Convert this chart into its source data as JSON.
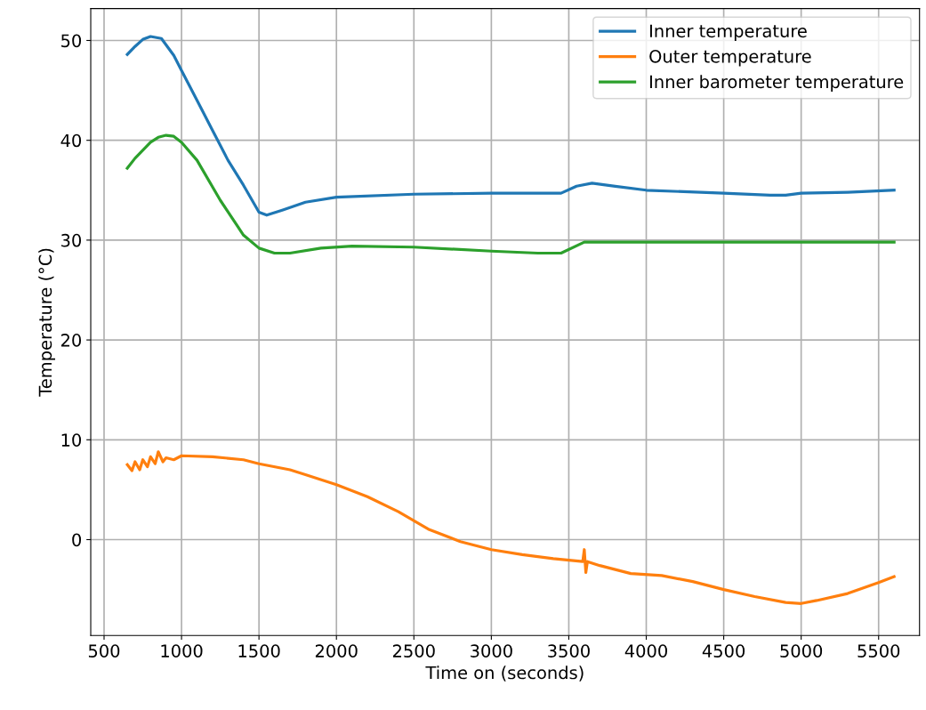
{
  "chart_data": {
    "type": "line",
    "xlabel": "Time on (seconds)",
    "ylabel": "Temperature (°C)",
    "xlim": [
      414,
      5764
    ],
    "ylim": [
      -9.6,
      53.2
    ],
    "xticks": [
      500,
      1000,
      1500,
      2000,
      2500,
      3000,
      3500,
      4000,
      4500,
      5000,
      5500
    ],
    "yticks": [
      0,
      10,
      20,
      30,
      40,
      50
    ],
    "grid": true,
    "legend": "top right",
    "marker": "none",
    "line_style": "solid",
    "series": [
      {
        "name": "Inner temperature",
        "color": "#1f77b4",
        "x": [
          650,
          700,
          750,
          800,
          870,
          950,
          1000,
          1100,
          1200,
          1300,
          1400,
          1500,
          1550,
          1650,
          1800,
          2000,
          2500,
          3000,
          3450,
          3550,
          3650,
          3800,
          4000,
          4500,
          4800,
          4900,
          5000,
          5300,
          5600
        ],
        "values": [
          48.6,
          49.4,
          50.1,
          50.4,
          50.2,
          48.5,
          47,
          44,
          41,
          38,
          35.5,
          32.8,
          32.5,
          33,
          33.8,
          34.3,
          34.6,
          34.7,
          34.7,
          35.4,
          35.7,
          35.4,
          35,
          34.7,
          34.5,
          34.5,
          34.7,
          34.8,
          35.0
        ]
      },
      {
        "name": "Outer temperature",
        "color": "#ff7f0e",
        "x": [
          650,
          680,
          700,
          730,
          750,
          780,
          800,
          830,
          850,
          880,
          900,
          950,
          1000,
          1200,
          1400,
          1500,
          1700,
          1800,
          2000,
          2200,
          2400,
          2600,
          2800,
          3000,
          3200,
          3400,
          3590,
          3600,
          3610,
          3620,
          3700,
          3900,
          4100,
          4300,
          4500,
          4700,
          4900,
          5000,
          5100,
          5300,
          5500,
          5600
        ],
        "values": [
          7.5,
          6.9,
          7.8,
          7.0,
          8.0,
          7.3,
          8.3,
          7.6,
          8.8,
          7.8,
          8.2,
          8.0,
          8.4,
          8.3,
          8.0,
          7.6,
          7.0,
          6.5,
          5.5,
          4.3,
          2.8,
          1.0,
          -0.2,
          -1.0,
          -1.5,
          -1.9,
          -2.2,
          -1.0,
          -3.3,
          -2.2,
          -2.6,
          -3.4,
          -3.6,
          -4.2,
          -5.0,
          -5.7,
          -6.3,
          -6.4,
          -6.1,
          -5.4,
          -4.3,
          -3.7
        ]
      },
      {
        "name": "Inner barometer temperature",
        "color": "#2ca02c",
        "x": [
          650,
          700,
          750,
          800,
          850,
          900,
          950,
          1000,
          1100,
          1250,
          1400,
          1500,
          1600,
          1700,
          1900,
          2100,
          2500,
          3000,
          3300,
          3450,
          3600,
          4000,
          5000,
          5600
        ],
        "values": [
          37.2,
          38.2,
          39,
          39.8,
          40.3,
          40.5,
          40.4,
          39.8,
          38,
          34,
          30.5,
          29.2,
          28.7,
          28.7,
          29.2,
          29.4,
          29.3,
          28.9,
          28.7,
          28.7,
          29.8,
          29.8,
          29.8,
          29.8
        ]
      }
    ]
  }
}
